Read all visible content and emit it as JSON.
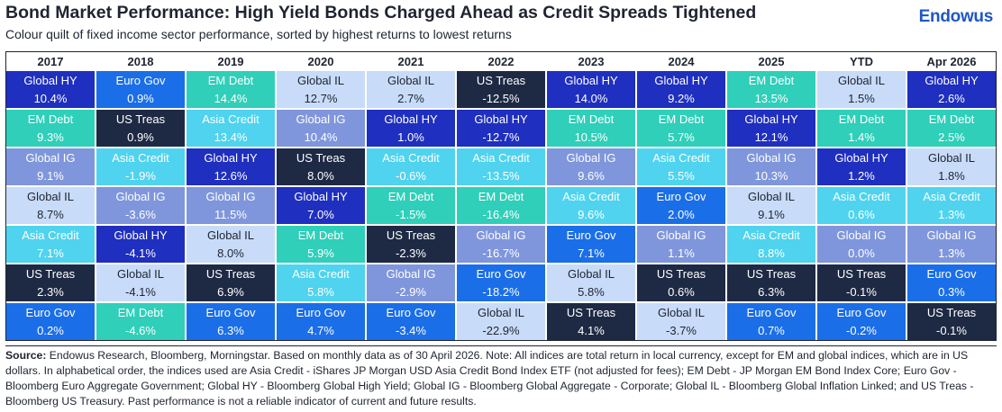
{
  "header": {
    "title": "Bond Market Performance: High Yield Bonds Charged Ahead as Credit Spreads Tightened",
    "subtitle": "Colour quilt of fixed income sector performance, sorted by highest returns to lowest returns",
    "logo": "Endowus"
  },
  "chart_data": {
    "type": "table",
    "columns": [
      "2017",
      "2018",
      "2019",
      "2020",
      "2021",
      "2022",
      "2023",
      "2024",
      "2025",
      "YTD",
      "Apr 2026"
    ],
    "rows": [
      [
        {
          "name": "Global HY",
          "value": "10.4%"
        },
        {
          "name": "Euro Gov",
          "value": "0.9%"
        },
        {
          "name": "EM Debt",
          "value": "14.4%"
        },
        {
          "name": "Global IL",
          "value": "12.7%"
        },
        {
          "name": "Global IL",
          "value": "2.7%"
        },
        {
          "name": "US Treas",
          "value": "-12.5%"
        },
        {
          "name": "Global HY",
          "value": "14.0%"
        },
        {
          "name": "Global HY",
          "value": "9.2%"
        },
        {
          "name": "EM Debt",
          "value": "13.5%"
        },
        {
          "name": "Global IL",
          "value": "1.5%"
        },
        {
          "name": "Global HY",
          "value": "2.6%"
        }
      ],
      [
        {
          "name": "EM Debt",
          "value": "9.3%"
        },
        {
          "name": "US Treas",
          "value": "0.9%"
        },
        {
          "name": "Asia Credit",
          "value": "13.4%"
        },
        {
          "name": "Global IG",
          "value": "10.4%"
        },
        {
          "name": "Global HY",
          "value": "1.0%"
        },
        {
          "name": "Global HY",
          "value": "-12.7%"
        },
        {
          "name": "EM Debt",
          "value": "10.5%"
        },
        {
          "name": "EM Debt",
          "value": "5.7%"
        },
        {
          "name": "Global HY",
          "value": "12.1%"
        },
        {
          "name": "EM Debt",
          "value": "1.4%"
        },
        {
          "name": "EM Debt",
          "value": "2.5%"
        }
      ],
      [
        {
          "name": "Global IG",
          "value": "9.1%"
        },
        {
          "name": "Asia Credit",
          "value": "-1.9%"
        },
        {
          "name": "Global HY",
          "value": "12.6%"
        },
        {
          "name": "US Treas",
          "value": "8.0%"
        },
        {
          "name": "Asia Credit",
          "value": "-0.6%"
        },
        {
          "name": "Asia Credit",
          "value": "-13.5%"
        },
        {
          "name": "Global IG",
          "value": "9.6%"
        },
        {
          "name": "Asia Credit",
          "value": "5.5%"
        },
        {
          "name": "Global IG",
          "value": "10.3%"
        },
        {
          "name": "Global HY",
          "value": "1.2%"
        },
        {
          "name": "Global IL",
          "value": "1.8%"
        }
      ],
      [
        {
          "name": "Global IL",
          "value": "8.7%"
        },
        {
          "name": "Global IG",
          "value": "-3.6%"
        },
        {
          "name": "Global IG",
          "value": "11.5%"
        },
        {
          "name": "Global HY",
          "value": "7.0%"
        },
        {
          "name": "EM Debt",
          "value": "-1.5%"
        },
        {
          "name": "EM Debt",
          "value": "-16.4%"
        },
        {
          "name": "Asia Credit",
          "value": "9.6%"
        },
        {
          "name": "Euro Gov",
          "value": "2.0%"
        },
        {
          "name": "Global IL",
          "value": "9.1%"
        },
        {
          "name": "Asia Credit",
          "value": "0.6%"
        },
        {
          "name": "Asia Credit",
          "value": "1.3%"
        }
      ],
      [
        {
          "name": "Asia Credit",
          "value": "7.1%"
        },
        {
          "name": "Global HY",
          "value": "-4.1%"
        },
        {
          "name": "Global IL",
          "value": "8.0%"
        },
        {
          "name": "EM Debt",
          "value": "5.9%"
        },
        {
          "name": "US Treas",
          "value": "-2.3%"
        },
        {
          "name": "Global IG",
          "value": "-16.7%"
        },
        {
          "name": "Euro Gov",
          "value": "7.1%"
        },
        {
          "name": "Global IG",
          "value": "1.1%"
        },
        {
          "name": "Asia Credit",
          "value": "8.8%"
        },
        {
          "name": "Global IG",
          "value": "0.0%"
        },
        {
          "name": "Global IG",
          "value": "1.3%"
        }
      ],
      [
        {
          "name": "US Treas",
          "value": "2.3%"
        },
        {
          "name": "Global IL",
          "value": "-4.1%"
        },
        {
          "name": "US Treas",
          "value": "6.9%"
        },
        {
          "name": "Asia Credit",
          "value": "5.8%"
        },
        {
          "name": "Global IG",
          "value": "-2.9%"
        },
        {
          "name": "Euro Gov",
          "value": "-18.2%"
        },
        {
          "name": "Global IL",
          "value": "5.8%"
        },
        {
          "name": "US Treas",
          "value": "0.6%"
        },
        {
          "name": "US Treas",
          "value": "6.3%"
        },
        {
          "name": "US Treas",
          "value": "-0.1%"
        },
        {
          "name": "Euro Gov",
          "value": "0.3%"
        }
      ],
      [
        {
          "name": "Euro Gov",
          "value": "0.2%"
        },
        {
          "name": "EM Debt",
          "value": "-4.6%"
        },
        {
          "name": "Euro Gov",
          "value": "6.3%"
        },
        {
          "name": "Euro Gov",
          "value": "4.7%"
        },
        {
          "name": "Euro Gov",
          "value": "-3.4%"
        },
        {
          "name": "Global IL",
          "value": "-22.9%"
        },
        {
          "name": "US Treas",
          "value": "4.1%"
        },
        {
          "name": "Global IL",
          "value": "-3.7%"
        },
        {
          "name": "Euro Gov",
          "value": "0.7%"
        },
        {
          "name": "Euro Gov",
          "value": "-0.2%"
        },
        {
          "name": "US Treas",
          "value": "-0.1%"
        }
      ]
    ],
    "sector_colors": {
      "Global HY": {
        "bg": "#1f2fbf",
        "fg": "#ffffff"
      },
      "Euro Gov": {
        "bg": "#1a6ee8",
        "fg": "#ffffff"
      },
      "EM Debt": {
        "bg": "#2fcfb9",
        "fg": "#ffffff"
      },
      "Global IL": {
        "bg": "#c8dcf9",
        "fg": "#1f2430"
      },
      "US Treas": {
        "bg": "#1e2a44",
        "fg": "#ffffff"
      },
      "Asia Credit": {
        "bg": "#4fd3ee",
        "fg": "#ffffff"
      },
      "Global IG": {
        "bg": "#7f96dc",
        "fg": "#ffffff"
      }
    }
  },
  "source": {
    "label": "Source:",
    "text": "Endowus Research, Bloomberg, Morningstar. Based on monthly data as of 30 April 2026. Note: All indices are total return in local currency, except for EM and global indices, which are in US dollars. In alphabetical order, the indices used are Asia Credit - iShares JP Morgan USD Asia Credit Bond Index ETF (not adjusted for fees); EM Debt - JP Morgan EM Bond Index Core; Euro Gov - Bloomberg Euro Aggregate Government; Global HY - Bloomberg Global High Yield; Global IG - Bloomberg Global Aggregate - Corporate; Global IL - Bloomberg Global Inflation Linked; and US Treas - Bloomberg US Treasury. Past performance is not a reliable indicator of current and future results."
  }
}
